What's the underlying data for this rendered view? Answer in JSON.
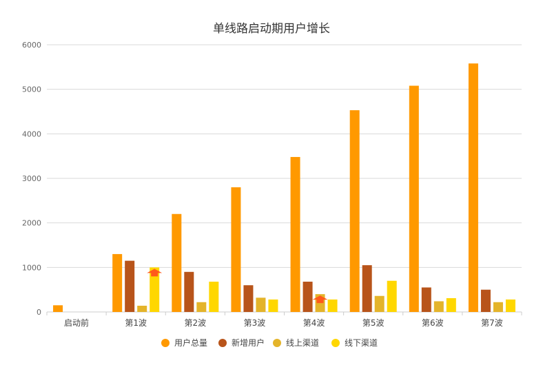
{
  "chart_data": {
    "type": "bar",
    "title": "单线路启动期用户增长",
    "xlabel": "",
    "ylabel": "",
    "ylim": [
      0,
      6000
    ],
    "yticks": [
      0,
      1000,
      2000,
      3000,
      4000,
      5000,
      6000
    ],
    "grid": true,
    "legend_position": "bottom",
    "categories": [
      "启动前",
      "第1波",
      "第2波",
      "第3波",
      "第4波",
      "第5波",
      "第6波",
      "第7波"
    ],
    "series": [
      {
        "name": "用户总量",
        "color": "#FF9900",
        "values": [
          150,
          1300,
          2200,
          2800,
          3480,
          4530,
          5080,
          5580
        ]
      },
      {
        "name": "新增用户",
        "color": "#B8541A",
        "values": [
          0,
          1150,
          900,
          600,
          680,
          1050,
          550,
          500
        ]
      },
      {
        "name": "线上渠道",
        "color": "#E4B42A",
        "values": [
          0,
          140,
          220,
          320,
          400,
          360,
          240,
          220
        ]
      },
      {
        "name": "线下渠道",
        "color": "#FFD700",
        "values": [
          0,
          1000,
          680,
          280,
          280,
          700,
          310,
          280
        ]
      }
    ],
    "markers": [
      {
        "category": "第1波",
        "series": "线下渠道",
        "shape": "up-arrow",
        "color": "#FF5A1A"
      },
      {
        "category": "第4波",
        "series": "线上渠道",
        "shape": "up-arrow",
        "color": "#FF5A1A"
      }
    ]
  }
}
